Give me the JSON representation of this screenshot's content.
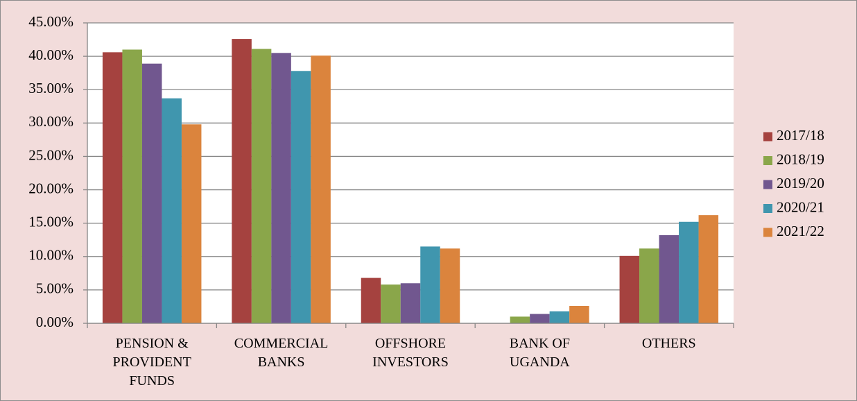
{
  "chart_data": {
    "type": "bar",
    "categories": [
      "PENSION & PROVIDENT FUNDS",
      "COMMERCIAL BANKS",
      "OFFSHORE INVESTORS",
      "BANK OF UGANDA",
      "OTHERS"
    ],
    "series": [
      {
        "name": "2017/18",
        "color": "#a5423f",
        "values": [
          40.6,
          42.6,
          6.8,
          0,
          10.1
        ]
      },
      {
        "name": "2018/19",
        "color": "#8aa64a",
        "values": [
          41.0,
          41.1,
          5.8,
          1.0,
          11.2
        ]
      },
      {
        "name": "2019/20",
        "color": "#71578f",
        "values": [
          38.9,
          40.5,
          6.0,
          1.4,
          13.2
        ]
      },
      {
        "name": "2020/21",
        "color": "#4096ae",
        "values": [
          33.7,
          37.8,
          11.5,
          1.8,
          15.2
        ]
      },
      {
        "name": "2021/22",
        "color": "#db843d",
        "values": [
          29.8,
          40.1,
          11.2,
          2.6,
          16.2
        ]
      }
    ],
    "ylim": [
      0,
      45
    ],
    "yticks": [
      {
        "value": 0,
        "label": "0.00%"
      },
      {
        "value": 5,
        "label": "5.00%"
      },
      {
        "value": 10,
        "label": "10.00%"
      },
      {
        "value": 15,
        "label": "15.00%"
      },
      {
        "value": 20,
        "label": "20.00%"
      },
      {
        "value": 25,
        "label": "25.00%"
      },
      {
        "value": 30,
        "label": "30.00%"
      },
      {
        "value": 35,
        "label": "35.00%"
      },
      {
        "value": 40,
        "label": "40.00%"
      },
      {
        "value": 45,
        "label": "45.00%"
      }
    ],
    "grid": true,
    "legend": "right"
  }
}
